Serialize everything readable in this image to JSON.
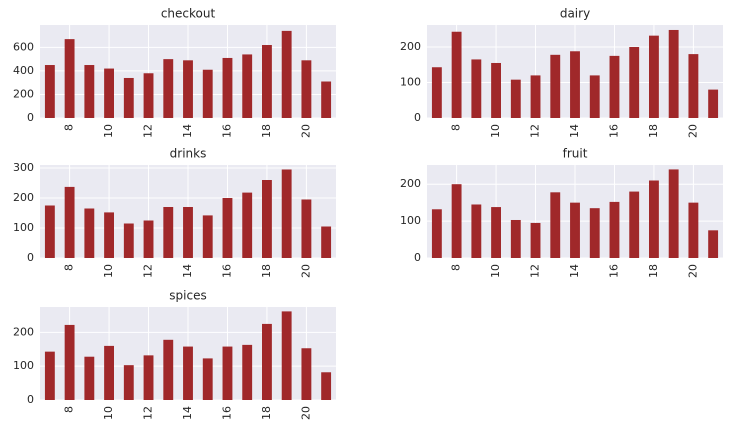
{
  "chart_data": [
    {
      "type": "bar",
      "title": "checkout",
      "color": "#a0282a",
      "grid": true,
      "categories": [
        null,
        "8",
        null,
        "10",
        null,
        "12",
        null,
        "14",
        null,
        "16",
        null,
        "18",
        null,
        "20",
        null
      ],
      "values": [
        450,
        670,
        450,
        420,
        340,
        380,
        500,
        490,
        410,
        510,
        540,
        620,
        740,
        490,
        310
      ],
      "ylim": [
        0,
        790
      ],
      "yticks": [
        0,
        200,
        400,
        600
      ]
    },
    {
      "type": "bar",
      "title": "dairy",
      "color": "#a0282a",
      "grid": true,
      "categories": [
        null,
        "8",
        null,
        "10",
        null,
        "12",
        null,
        "14",
        null,
        "16",
        null,
        "18",
        null,
        "20",
        null
      ],
      "values": [
        143,
        243,
        165,
        155,
        108,
        120,
        178,
        188,
        120,
        175,
        200,
        232,
        248,
        180,
        80
      ],
      "ylim": [
        0,
        262
      ],
      "yticks": [
        0,
        100,
        200
      ]
    },
    {
      "type": "bar",
      "title": "drinks",
      "color": "#a0282a",
      "grid": true,
      "categories": [
        null,
        "8",
        null,
        "10",
        null,
        "12",
        null,
        "14",
        null,
        "16",
        null,
        "18",
        null,
        "20",
        null
      ],
      "values": [
        175,
        237,
        165,
        152,
        115,
        125,
        170,
        170,
        142,
        200,
        218,
        260,
        295,
        195,
        105
      ],
      "ylim": [
        0,
        310
      ],
      "yticks": [
        0,
        100,
        200,
        300
      ]
    },
    {
      "type": "bar",
      "title": "fruit",
      "color": "#a0282a",
      "grid": true,
      "categories": [
        null,
        "8",
        null,
        "10",
        null,
        "12",
        null,
        "14",
        null,
        "16",
        null,
        "18",
        null,
        "20",
        null
      ],
      "values": [
        132,
        200,
        145,
        138,
        103,
        95,
        178,
        150,
        135,
        152,
        180,
        210,
        240,
        150,
        75
      ],
      "ylim": [
        0,
        252
      ],
      "yticks": [
        0,
        100,
        200
      ]
    },
    {
      "type": "bar",
      "title": "spices",
      "color": "#a0282a",
      "grid": true,
      "categories": [
        null,
        "8",
        null,
        "10",
        null,
        "12",
        null,
        "14",
        null,
        "16",
        null,
        "18",
        null,
        "20",
        null
      ],
      "values": [
        143,
        222,
        128,
        160,
        103,
        132,
        178,
        158,
        123,
        158,
        163,
        225,
        262,
        153,
        82
      ],
      "ylim": [
        0,
        275
      ],
      "yticks": [
        0,
        100,
        200
      ]
    }
  ]
}
